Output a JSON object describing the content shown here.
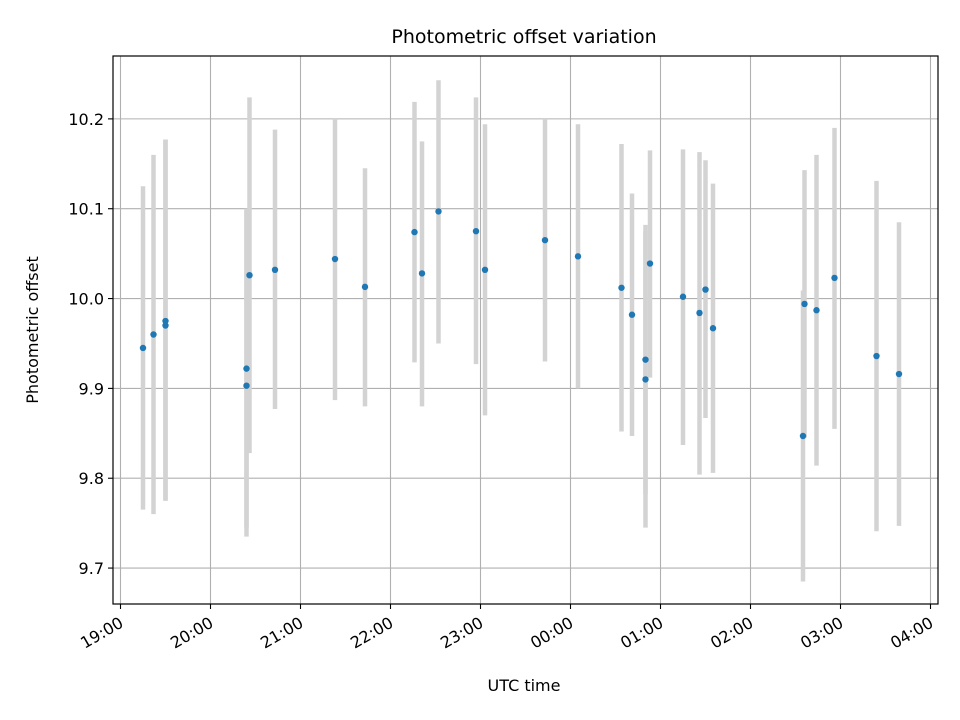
{
  "chart_data": {
    "type": "scatter",
    "title": "Photometric offset variation",
    "xlabel": "UTC time",
    "ylabel": "Photometric offset",
    "x_ticks": [
      "19:00",
      "20:00",
      "21:00",
      "22:00",
      "23:00",
      "00:00",
      "01:00",
      "02:00",
      "03:00",
      "04:00"
    ],
    "y_ticks": [
      "9.7",
      "9.8",
      "9.9",
      "10.0",
      "10.1",
      "10.2"
    ],
    "xlim": [
      "18:55",
      "04:05"
    ],
    "ylim": [
      9.66,
      10.27
    ],
    "grid": true,
    "errorbar_color": "#d3d3d3",
    "marker_color": "#1f77b4",
    "points": [
      {
        "x": "19:15",
        "y": 9.945,
        "low": 9.765,
        "high": 10.125
      },
      {
        "x": "19:22",
        "y": 9.96,
        "low": 9.76,
        "high": 10.16
      },
      {
        "x": "19:30",
        "y": 9.97,
        "low": 9.775,
        "high": 10.177
      },
      {
        "x": "19:30",
        "y": 9.975,
        "low": 9.775,
        "high": 10.177
      },
      {
        "x": "20:24",
        "y": 9.922,
        "low": 9.745,
        "high": 10.098
      },
      {
        "x": "20:24",
        "y": 9.903,
        "low": 9.735,
        "high": 10.1
      },
      {
        "x": "20:26",
        "y": 10.026,
        "low": 9.828,
        "high": 10.224
      },
      {
        "x": "20:43",
        "y": 10.032,
        "low": 9.877,
        "high": 10.188
      },
      {
        "x": "21:23",
        "y": 10.044,
        "low": 9.887,
        "high": 10.201
      },
      {
        "x": "21:43",
        "y": 10.013,
        "low": 9.88,
        "high": 10.145
      },
      {
        "x": "22:16",
        "y": 10.074,
        "low": 9.929,
        "high": 10.219
      },
      {
        "x": "22:21",
        "y": 10.028,
        "low": 9.88,
        "high": 10.175
      },
      {
        "x": "22:32",
        "y": 10.097,
        "low": 9.95,
        "high": 10.243
      },
      {
        "x": "22:57",
        "y": 10.075,
        "low": 9.927,
        "high": 10.224
      },
      {
        "x": "23:03",
        "y": 10.032,
        "low": 9.87,
        "high": 10.194
      },
      {
        "x": "23:43",
        "y": 10.065,
        "low": 9.93,
        "high": 10.2
      },
      {
        "x": "00:05",
        "y": 10.047,
        "low": 9.9,
        "high": 10.194
      },
      {
        "x": "00:34",
        "y": 10.012,
        "low": 9.852,
        "high": 10.172
      },
      {
        "x": "00:41",
        "y": 9.982,
        "low": 9.847,
        "high": 10.117
      },
      {
        "x": "00:50",
        "y": 9.932,
        "low": 9.782,
        "high": 10.082
      },
      {
        "x": "00:50",
        "y": 9.91,
        "low": 9.745,
        "high": 10.075
      },
      {
        "x": "00:53",
        "y": 10.039,
        "low": 9.912,
        "high": 10.165
      },
      {
        "x": "01:15",
        "y": 10.002,
        "low": 9.837,
        "high": 10.166
      },
      {
        "x": "01:26",
        "y": 9.984,
        "low": 9.804,
        "high": 10.163
      },
      {
        "x": "01:30",
        "y": 10.01,
        "low": 9.867,
        "high": 10.154
      },
      {
        "x": "01:35",
        "y": 9.967,
        "low": 9.806,
        "high": 10.128
      },
      {
        "x": "02:35",
        "y": 9.847,
        "low": 9.685,
        "high": 10.009
      },
      {
        "x": "02:36",
        "y": 9.994,
        "low": 9.845,
        "high": 10.143
      },
      {
        "x": "02:44",
        "y": 9.987,
        "low": 9.814,
        "high": 10.16
      },
      {
        "x": "02:56",
        "y": 10.023,
        "low": 9.855,
        "high": 10.19
      },
      {
        "x": "03:24",
        "y": 9.936,
        "low": 9.741,
        "high": 10.131
      },
      {
        "x": "03:39",
        "y": 9.916,
        "low": 9.747,
        "high": 10.085
      }
    ]
  }
}
